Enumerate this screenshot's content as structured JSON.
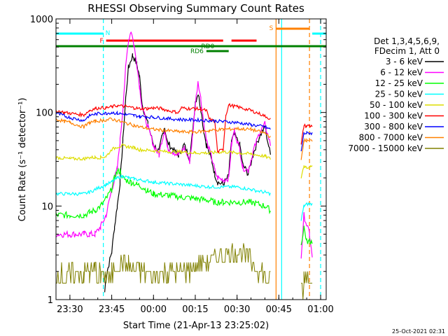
{
  "chart_data": {
    "type": "line",
    "title": "RHESSI Observing Summary Count Rates",
    "xlabel": "Start Time (21-Apr-13 23:25:02)",
    "ylabel": "Count Rate (s⁻¹ detector⁻¹)",
    "x_unit": "minutes after 23:25:02",
    "xlim": [
      0,
      97
    ],
    "ylim": [
      1,
      1000
    ],
    "yscale": "log",
    "x_ticks": [
      {
        "label": "23:30",
        "x": 5
      },
      {
        "label": "23:45",
        "x": 20
      },
      {
        "label": "00:00",
        "x": 35
      },
      {
        "label": "00:15",
        "x": 50
      },
      {
        "label": "00:30",
        "x": 65
      },
      {
        "label": "00:45",
        "x": 80
      },
      {
        "label": "01:00",
        "x": 95
      }
    ],
    "y_ticks": [
      {
        "label": "1",
        "y": 1
      },
      {
        "label": "10",
        "y": 10
      },
      {
        "label": "100",
        "y": 100
      },
      {
        "label": "1000",
        "y": 1000
      }
    ],
    "legend": {
      "position": "right",
      "header": [
        "Det 1,3,4,5,6,9,",
        "FDecim 1, Att 0"
      ]
    },
    "series": [
      {
        "name": "3 - 6 keV",
        "color": "#000000",
        "x": [
          0,
          10,
          16,
          17.5,
          18,
          20,
          21,
          22,
          23,
          24,
          25,
          26,
          27.5,
          29,
          30,
          31,
          33,
          35,
          37,
          38,
          39,
          40,
          42,
          44,
          46,
          48,
          49,
          50,
          51,
          52,
          53,
          54,
          56,
          57,
          58,
          60,
          62,
          63,
          64,
          66,
          67,
          69,
          71,
          73,
          75,
          77
        ],
        "y": [
          null,
          null,
          null,
          1.2,
          1.8,
          3.2,
          6,
          10,
          18,
          50,
          140,
          300,
          410,
          330,
          240,
          120,
          75,
          45,
          38,
          55,
          70,
          48,
          40,
          35,
          45,
          32,
          60,
          130,
          160,
          110,
          65,
          45,
          30,
          22,
          18,
          17,
          21,
          50,
          58,
          45,
          28,
          22,
          38,
          55,
          70,
          35
        ]
      },
      {
        "name": "6 - 12 keV",
        "color": "#ff00ff",
        "x": [
          0,
          5,
          10,
          12,
          14,
          16,
          18,
          20,
          22,
          23,
          24,
          25,
          26,
          27,
          28,
          29,
          30,
          31,
          33,
          35,
          37,
          38,
          39,
          40,
          42,
          44,
          46,
          48,
          49,
          50,
          51,
          52,
          53,
          54,
          56,
          57,
          58,
          60,
          62,
          63,
          64,
          66,
          67,
          69,
          71,
          73,
          75,
          77,
          88,
          89,
          91,
          92
        ],
        "y": [
          5,
          5,
          5,
          5,
          5,
          6,
          8,
          15,
          25,
          50,
          110,
          300,
          600,
          750,
          520,
          330,
          190,
          110,
          70,
          45,
          35,
          50,
          65,
          42,
          38,
          35,
          42,
          30,
          55,
          120,
          220,
          140,
          80,
          50,
          32,
          24,
          20,
          19,
          20,
          45,
          65,
          40,
          26,
          24,
          40,
          60,
          75,
          45,
          2.8,
          8,
          5,
          2.8
        ]
      },
      {
        "name": "12 - 25 keV",
        "color": "#00ff00",
        "x": [
          0,
          5,
          10,
          12,
          14,
          16,
          18,
          20,
          21,
          22,
          23,
          24,
          25,
          27,
          29,
          31,
          33,
          35,
          40,
          45,
          50,
          55,
          57,
          60,
          65,
          70,
          75,
          77,
          88,
          89,
          90,
          91,
          92
        ],
        "y": [
          8,
          8,
          8,
          8.5,
          9,
          10,
          12,
          15,
          20,
          23,
          24,
          20,
          19,
          18,
          17,
          16,
          14.5,
          13.5,
          13,
          12.5,
          12,
          11.5,
          11,
          11,
          11,
          11,
          10,
          9,
          3.8,
          6,
          4.2,
          4.2,
          4.2
        ]
      },
      {
        "name": "25 - 50 keV",
        "color": "#00ffff",
        "x": [
          0,
          5,
          10,
          12,
          14,
          16,
          18,
          20,
          22,
          24,
          26,
          28,
          30,
          33,
          35,
          40,
          45,
          50,
          55,
          60,
          65,
          70,
          75,
          77,
          88,
          89,
          90,
          91,
          92
        ],
        "y": [
          13.5,
          13.5,
          13.5,
          14,
          15,
          16,
          17,
          18,
          20,
          21,
          20,
          19.5,
          19,
          18.5,
          18,
          17.5,
          17,
          16.5,
          16,
          16,
          16,
          15,
          14,
          13.5,
          7,
          10,
          10.5,
          10.5,
          10.5
        ]
      },
      {
        "name": "50 - 100 keV",
        "color": "#dddd00",
        "x": [
          0,
          5,
          10,
          12,
          14,
          16,
          18,
          20,
          22,
          24,
          26,
          28,
          30,
          35,
          40,
          45,
          50,
          55,
          60,
          65,
          70,
          75,
          77,
          88,
          89,
          90,
          91,
          92
        ],
        "y": [
          33,
          32,
          32,
          33,
          33,
          33,
          34,
          40,
          43,
          44,
          43,
          42,
          40,
          39,
          38,
          38,
          37,
          37,
          38,
          37,
          36,
          34,
          32,
          20,
          27,
          26,
          26,
          26
        ]
      },
      {
        "name": "100 - 300 keV",
        "color": "#ff0000",
        "x": [
          0,
          3,
          5,
          10,
          12,
          14,
          16,
          18,
          20,
          22,
          25,
          28,
          30,
          33,
          35,
          38,
          40,
          44,
          45,
          47,
          50,
          52,
          54,
          55,
          57,
          58,
          60,
          61,
          62,
          65,
          70,
          75,
          77,
          88,
          89,
          90,
          91,
          92
        ],
        "y": [
          105,
          100,
          98,
          94,
          105,
          110,
          112,
          112,
          115,
          118,
          116,
          112,
          110,
          110,
          112,
          110,
          105,
          100,
          112,
          110,
          110,
          108,
          105,
          85,
          80,
          38,
          40,
          95,
          120,
          115,
          105,
          92,
          85,
          45,
          72,
          72,
          72,
          72
        ]
      },
      {
        "name": "300 - 800 keV",
        "color": "#0000ff",
        "x": [
          0,
          3,
          5,
          10,
          12,
          14,
          16,
          18,
          20,
          22,
          25,
          28,
          30,
          35,
          40,
          45,
          50,
          55,
          60,
          65,
          70,
          75,
          77,
          88,
          89,
          90,
          91,
          92
        ],
        "y": [
          98,
          92,
          88,
          82,
          93,
          96,
          98,
          98,
          100,
          98,
          95,
          93,
          91,
          89,
          86,
          84,
          83,
          82,
          80,
          78,
          74,
          70,
          66,
          38,
          60,
          60,
          60,
          60
        ]
      },
      {
        "name": "800 - 7000 keV",
        "color": "#ff8000",
        "x": [
          0,
          3,
          5,
          10,
          12,
          14,
          16,
          18,
          20,
          22,
          25,
          28,
          30,
          35,
          40,
          45,
          50,
          55,
          60,
          65,
          70,
          75,
          77,
          88,
          89,
          90,
          91,
          92
        ],
        "y": [
          85,
          80,
          78,
          70,
          78,
          80,
          82,
          83,
          85,
          82,
          77,
          73,
          70,
          66,
          64,
          62,
          62,
          64,
          66,
          67,
          66,
          60,
          55,
          30,
          50,
          50,
          50,
          50
        ]
      },
      {
        "name": "7000 - 15000 keV",
        "color": "#808000",
        "x": [
          0,
          5,
          10,
          12,
          14,
          16,
          18,
          20,
          22,
          24,
          26,
          28,
          30,
          35,
          40,
          45,
          50,
          55,
          60,
          65,
          70,
          75,
          77,
          88,
          89,
          90,
          91,
          92
        ],
        "y": [
          1.8,
          1.8,
          1.9,
          2.0,
          2.0,
          1.8,
          1.7,
          1.8,
          2.2,
          2.4,
          2.4,
          2.2,
          2.0,
          1.8,
          1.9,
          2.0,
          2.2,
          2.6,
          3.0,
          3.3,
          2.6,
          1.8,
          1.6,
          1.2,
          1.6,
          1.6,
          1.6,
          1.6
        ]
      }
    ],
    "flag_bars": [
      {
        "label": "N",
        "color": "#00ffff",
        "segments": [
          [
            0,
            17
          ],
          [
            92,
            97
          ]
        ]
      },
      {
        "label": "S",
        "color": "#ff8000",
        "segments": [
          [
            79,
            91
          ]
        ]
      },
      {
        "label": "F",
        "color": "#ff0000",
        "segments": [
          [
            18,
            60
          ],
          [
            63,
            72
          ]
        ]
      },
      {
        "label": "RD0",
        "color": "#008000",
        "segments": [
          [
            0,
            97
          ]
        ]
      },
      {
        "label": "RD6",
        "color": "#008000",
        "segments": [
          [
            54,
            62
          ]
        ]
      }
    ],
    "vertical_markers": [
      {
        "color": "#00ffff",
        "style": "dashed",
        "x": [
          17,
          95
        ]
      },
      {
        "color": "#00ffff",
        "style": "solid",
        "x": [
          81
        ]
      },
      {
        "color": "#ff8000",
        "style": "solid",
        "x": [
          79
        ]
      },
      {
        "color": "#ff8000",
        "style": "dashed",
        "x": [
          91
        ]
      }
    ],
    "grid": false
  },
  "footer_timestamp": "25-Oct-2021 02:31"
}
